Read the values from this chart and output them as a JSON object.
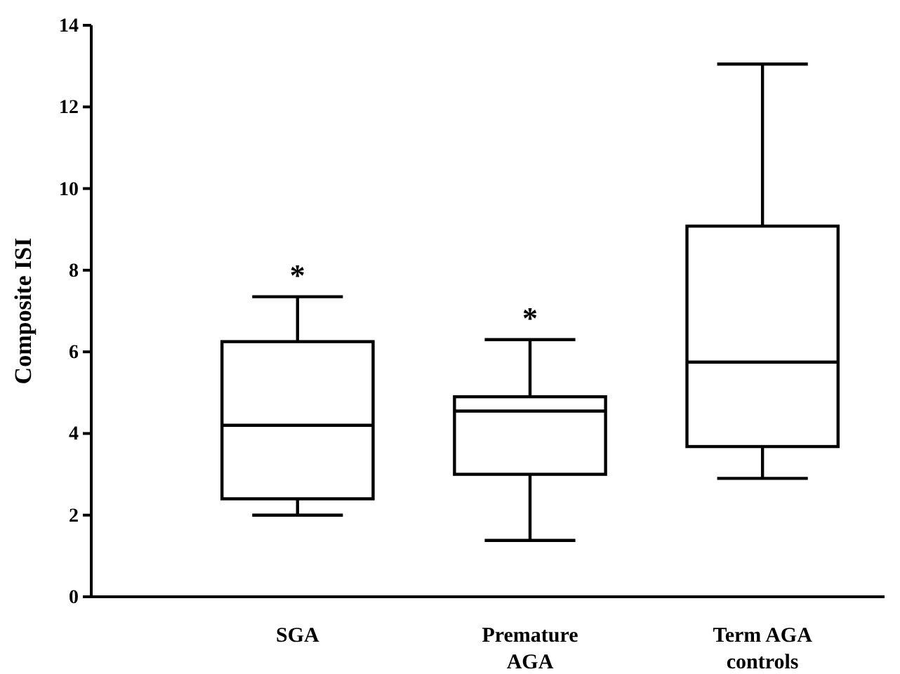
{
  "chart_data": {
    "type": "box",
    "ylabel": "Composite ISI",
    "categories": [
      "SGA",
      "Premature\nAGA",
      "Term AGA\ncontrols"
    ],
    "boxes": [
      {
        "low": 2.0,
        "q1": 2.4,
        "median": 4.2,
        "q3": 6.25,
        "high": 7.35
      },
      {
        "low": 1.38,
        "q1": 3.0,
        "median": 4.55,
        "q3": 4.9,
        "high": 6.3
      },
      {
        "low": 2.9,
        "q1": 3.68,
        "median": 5.75,
        "q3": 9.08,
        "high": 13.05
      }
    ],
    "color": "#000000",
    "ylim": [
      0,
      14
    ],
    "yticks": [
      0,
      2,
      4,
      6,
      8,
      10,
      12,
      14
    ],
    "annotations": [
      "*",
      "*"
    ]
  }
}
